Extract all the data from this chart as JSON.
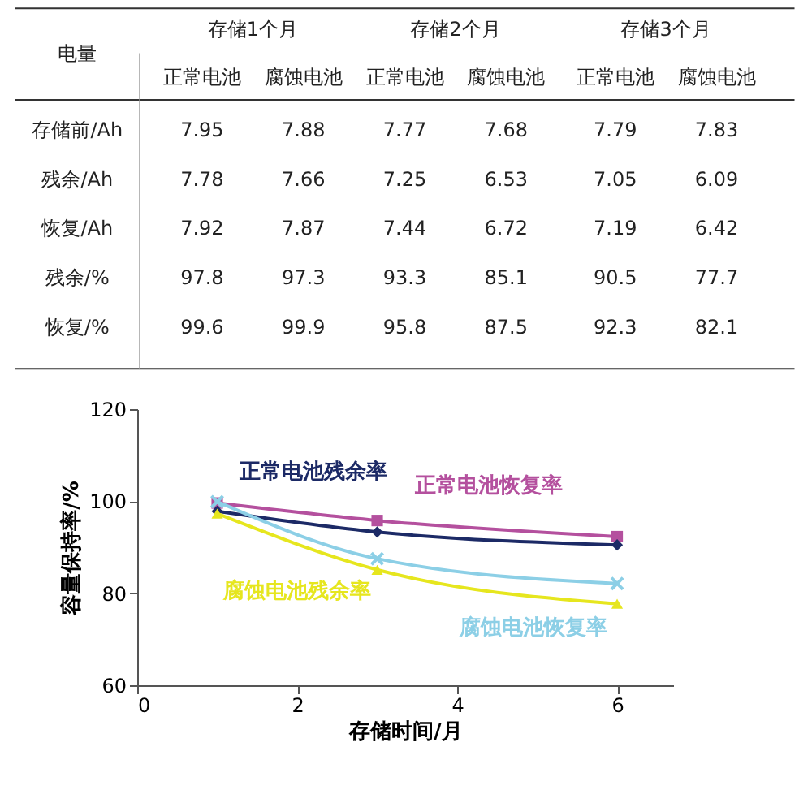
{
  "chart_data": [
    {
      "type": "other",
      "annotations": [
        "电量",
        "存储1个月",
        "存储2个月",
        "存储3个月",
        "正常电池",
        "腐蚀电池",
        "正常电池",
        "腐蚀电池",
        "正常电池",
        "腐蚀电池",
        "存储前/Ah",
        "7.95",
        "7.88",
        "7.77",
        "7.68",
        "7.79",
        "7.83",
        "残余/Ah",
        "7.78",
        "7.66",
        "7.25",
        "6.53",
        "7.05",
        "6.09",
        "恢复/Ah",
        "7.92",
        "7.87",
        "7.44",
        "6.72",
        "7.19",
        "6.42",
        "残余/%",
        "97.8",
        "97.3",
        "93.3",
        "85.1",
        "90.5",
        "77.7",
        "恢复/%",
        "99.6",
        "99.9",
        "95.8",
        "87.5",
        "92.3",
        "82.1"
      ]
    },
    {
      "type": "line",
      "xlabel": "存储时间/月",
      "ylabel": "容量保持率/%",
      "xlim": [
        0,
        6.7
      ],
      "xticks": [
        0,
        2,
        4,
        6
      ],
      "ylim": [
        60,
        120
      ],
      "yticks": [
        60,
        80,
        100,
        120
      ],
      "grid": false,
      "legend": false,
      "line_style": "solid",
      "series": [
        {
          "name": "正常电池恢复率",
          "color": "#b4509e",
          "marker": "square",
          "x": [
            1,
            3,
            6
          ],
          "values": [
            99.6,
            95.8,
            92.3
          ]
        },
        {
          "name": "正常电池残余率",
          "color": "#1c2a66",
          "marker": "diamond",
          "x": [
            1,
            3,
            6
          ],
          "values": [
            97.8,
            93.3,
            90.5
          ]
        },
        {
          "name": "腐蚀电池恢复率",
          "color": "#8ccfe6",
          "marker": "cross",
          "x": [
            1,
            3,
            6
          ],
          "values": [
            99.9,
            87.5,
            82.1
          ]
        },
        {
          "name": "腐蚀电池残余率",
          "color": "#e6e61e",
          "marker": "triangle",
          "x": [
            1,
            3,
            6
          ],
          "values": [
            97.3,
            85.1,
            77.7
          ]
        }
      ]
    }
  ]
}
